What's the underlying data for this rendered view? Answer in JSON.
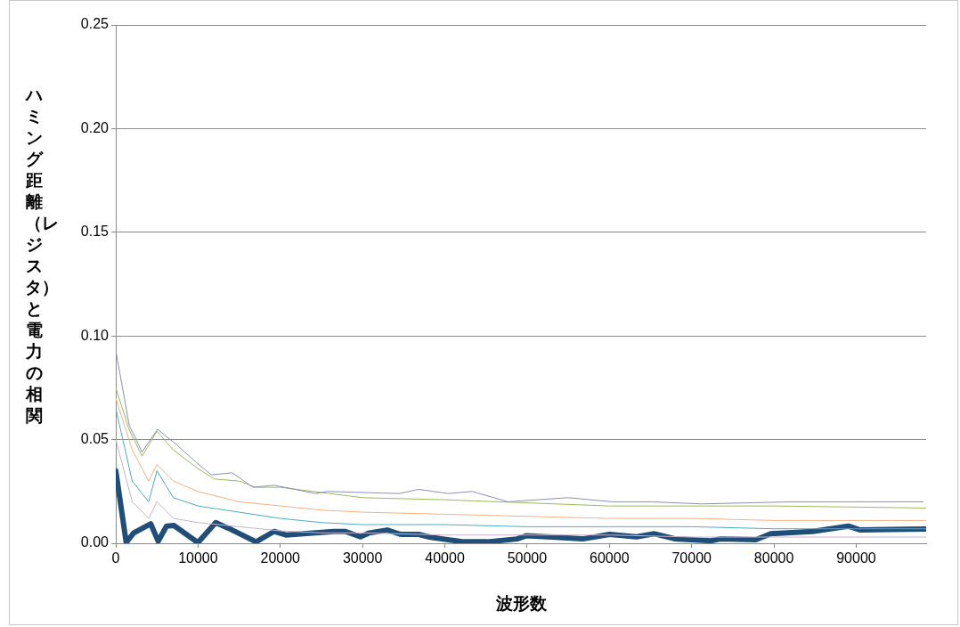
{
  "chart_data": {
    "type": "line",
    "xlabel": "波形数",
    "ylabel": "ハミング距離（レジスタ）と電力の相関",
    "xlim": [
      0,
      98500
    ],
    "xticks": [
      0,
      10000,
      20000,
      30000,
      40000,
      50000,
      60000,
      70000,
      80000,
      90000
    ],
    "ylim": [
      0,
      0.25
    ],
    "yticks": [
      {
        "value": 0,
        "label": "0.00"
      },
      {
        "value": 0.05,
        "label": "0.05"
      },
      {
        "value": 0.1,
        "label": "0.10"
      },
      {
        "value": 0.15,
        "label": "0.15"
      },
      {
        "value": 0.2,
        "label": "0.20"
      },
      {
        "value": 0.25,
        "label": "0.25"
      }
    ],
    "grid": "y",
    "legend": false,
    "marker": "none",
    "line_style": "solid",
    "series": [
      {
        "color": "#8c8fb8",
        "x": [
          0,
          1630,
          3190,
          5080,
          7260,
          9790,
          11610,
          14150,
          16680,
          19230,
          24300,
          25750,
          34450,
          36800,
          40430,
          43330,
          47680,
          54950,
          60390,
          65110,
          71270,
          82150,
          98100
        ],
        "values": [
          0.093,
          0.057,
          0.044,
          0.055,
          0.048,
          0.039,
          0.033,
          0.034,
          0.027,
          0.028,
          0.024,
          0.025,
          0.024,
          0.026,
          0.024,
          0.025,
          0.02,
          0.022,
          0.02,
          0.02,
          0.019,
          0.02,
          0.02
        ]
      },
      {
        "color": "#9bbb59",
        "x": [
          0,
          1600,
          3200,
          5000,
          7000,
          10000,
          12000,
          15000,
          17000,
          20000,
          24000,
          30000,
          40000,
          60000,
          80000,
          98500
        ],
        "values": [
          0.075,
          0.055,
          0.042,
          0.054,
          0.045,
          0.036,
          0.031,
          0.03,
          0.027,
          0.027,
          0.025,
          0.022,
          0.021,
          0.018,
          0.018,
          0.017
        ]
      },
      {
        "color": "#f4b183",
        "x": [
          0,
          2000,
          4000,
          5000,
          7000,
          10000,
          15000,
          20000,
          25000,
          30000,
          40000,
          50000,
          60000,
          70000,
          80000,
          98500
        ],
        "values": [
          0.07,
          0.045,
          0.03,
          0.038,
          0.03,
          0.025,
          0.02,
          0.018,
          0.016,
          0.015,
          0.014,
          0.013,
          0.012,
          0.012,
          0.011,
          0.011
        ]
      },
      {
        "color": "#4bacc6",
        "x": [
          0,
          2000,
          4000,
          5000,
          7000,
          10000,
          15000,
          20000,
          25000,
          30000,
          40000,
          50000,
          60000,
          70000,
          80000,
          98500
        ],
        "values": [
          0.065,
          0.03,
          0.02,
          0.035,
          0.022,
          0.018,
          0.015,
          0.012,
          0.01,
          0.009,
          0.009,
          0.008,
          0.008,
          0.008,
          0.007,
          0.007
        ]
      },
      {
        "color": "#c9b3c9",
        "x": [
          0,
          2000,
          4000,
          5000,
          7000,
          10000,
          15000,
          20000,
          25000,
          30000,
          40000,
          50000,
          60000,
          70000,
          80000,
          98500
        ],
        "values": [
          0.05,
          0.02,
          0.012,
          0.02,
          0.012,
          0.01,
          0.008,
          0.006,
          0.005,
          0.005,
          0.004,
          0.004,
          0.004,
          0.003,
          0.003,
          0.003
        ]
      },
      {
        "color": "#1f4e79",
        "x": [
          0,
          1270,
          2180,
          4250,
          5150,
          6170,
          7070,
          9980,
          12150,
          14150,
          17050,
          19230,
          20670,
          24300,
          26480,
          27930,
          29740,
          30830,
          33000,
          34630,
          36800,
          38270,
          42260,
          45160,
          48780,
          49870,
          53500,
          56760,
          60030,
          63290,
          65470,
          68010,
          72360,
          73450,
          77800,
          79620,
          84690,
          89040,
          90490,
          98500
        ],
        "values": [
          0.035,
          0.0004,
          0.005,
          0.0094,
          0.001,
          0.0083,
          0.0086,
          0.0003,
          0.01,
          0.0064,
          0.0007,
          0.0057,
          0.004,
          0.005,
          0.0057,
          0.0057,
          0.0031,
          0.005,
          0.0064,
          0.0043,
          0.0043,
          0.0029,
          0.0007,
          0.0007,
          0.0021,
          0.0036,
          0.0029,
          0.0021,
          0.0043,
          0.0031,
          0.0046,
          0.0021,
          0.0012,
          0.0021,
          0.0017,
          0.0046,
          0.0057,
          0.0083,
          0.0064,
          0.0069
        ]
      }
    ]
  }
}
